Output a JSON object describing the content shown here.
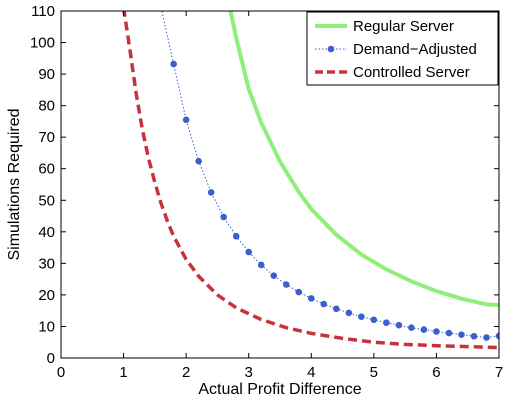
{
  "chart_data": {
    "type": "line",
    "xlabel": "Actual Profit Difference",
    "ylabel": "Simulations Required",
    "xlim": [
      0,
      7
    ],
    "ylim": [
      0,
      110
    ],
    "xticks": [
      "0",
      "1",
      "2",
      "3",
      "4",
      "5",
      "6",
      "7"
    ],
    "yticks": [
      "0",
      "10",
      "20",
      "30",
      "40",
      "50",
      "60",
      "70",
      "80",
      "90",
      "100",
      "110"
    ],
    "grid": false,
    "legend_position": "top-right",
    "series": [
      {
        "name": "Regular Server",
        "color": "#90ee7a",
        "style": "solid",
        "x": [
          2.7,
          2.8,
          3.0,
          3.2,
          3.5,
          3.8,
          4.0,
          4.4,
          4.8,
          5.2,
          5.6,
          6.0,
          6.4,
          6.8,
          7.0
        ],
        "y": [
          111.0,
          101.5,
          85.3,
          74.6,
          62.3,
          52.6,
          47.2,
          39.1,
          32.8,
          28.1,
          24.3,
          21.2,
          18.8,
          17.0,
          16.8
        ]
      },
      {
        "name": "Demand−Adjusted",
        "color": "#3b5fd0",
        "style": "dotted-markers",
        "x": [
          1.6,
          1.8,
          2.0,
          2.2,
          2.4,
          2.6,
          2.8,
          3.0,
          3.2,
          3.4,
          3.6,
          3.8,
          4.0,
          4.2,
          4.4,
          4.6,
          4.8,
          5.0,
          5.2,
          5.4,
          5.6,
          5.8,
          6.0,
          6.2,
          6.4,
          6.6,
          6.8,
          7.0
        ],
        "y": [
          111.0,
          93.2,
          75.5,
          62.4,
          52.5,
          44.7,
          38.6,
          33.6,
          29.5,
          26.1,
          23.3,
          20.9,
          18.9,
          17.1,
          15.6,
          14.3,
          13.1,
          12.1,
          11.2,
          10.4,
          9.6,
          9.0,
          8.4,
          7.9,
          7.4,
          6.9,
          6.5,
          7.0
        ]
      },
      {
        "name": "Controlled Server",
        "color": "#c8323c",
        "style": "dashed",
        "x": [
          1.0,
          1.1,
          1.2,
          1.3,
          1.4,
          1.5,
          1.6,
          1.7,
          1.8,
          2.0,
          2.2,
          2.5,
          2.8,
          3.2,
          3.6,
          4.0,
          4.5,
          5.0,
          5.5,
          6.0,
          6.5,
          7.0
        ],
        "y": [
          111.0,
          98.0,
          84.0,
          72.5,
          63.2,
          55.6,
          49.0,
          43.4,
          38.6,
          31.3,
          25.9,
          20.0,
          15.9,
          12.2,
          9.6,
          7.8,
          6.2,
          5.0,
          4.3,
          3.9,
          3.6,
          3.3
        ]
      }
    ]
  }
}
